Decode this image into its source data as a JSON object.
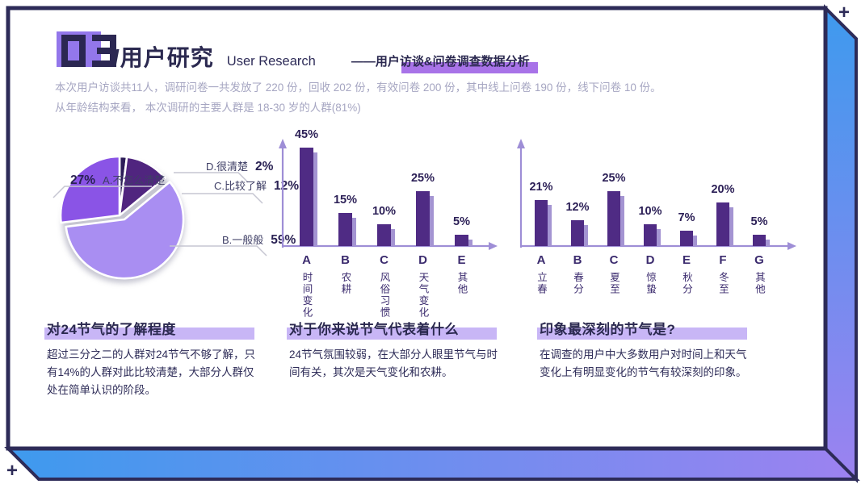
{
  "slide": {
    "number": "03",
    "title": "/用户研究",
    "title_en": "User Research",
    "subtitle": "——用户访谈&问卷调查数据分析",
    "intro": "本次用户访谈共11人，调研问卷一共发放了 220 份，回收 202 份，有效问卷 200 份，其中线上问卷 190 份，线下问卷 10 份。\n从年龄结构来看， 本次调研的主要人群是 18-30 岁的人群(81%)",
    "corner_plus": "+"
  },
  "chart_data": [
    {
      "type": "pie",
      "title": "对24节气的了解程度",
      "unit": "%",
      "slices": [
        {
          "label": "D.很清楚",
          "value": 2,
          "color": "#2c1c58"
        },
        {
          "label": "C.比较了解",
          "value": 12,
          "color": "#50257f"
        },
        {
          "label": "B.一般般",
          "value": 59,
          "color": "#a98ef2",
          "exploded": true
        },
        {
          "label": "A.不怎么清楚",
          "value": 27,
          "color": "#8a54e6"
        }
      ]
    },
    {
      "type": "bar",
      "title": "对于你来说节气代表着什么",
      "unit": "%",
      "categories": [
        "A",
        "B",
        "C",
        "D",
        "E"
      ],
      "category_names": [
        "时间变化",
        "农耕",
        "风俗习惯",
        "天气变化",
        "其他"
      ],
      "values": [
        45,
        15,
        10,
        25,
        5
      ],
      "ylim": [
        0,
        50
      ]
    },
    {
      "type": "bar",
      "title": "印象最深刻的节气是?",
      "unit": "%",
      "categories": [
        "A",
        "B",
        "C",
        "D",
        "E",
        "F",
        "G"
      ],
      "category_names": [
        "立春",
        "春分",
        "夏至",
        "惊蛰",
        "秋分",
        "冬至",
        "其他"
      ],
      "values": [
        21,
        12,
        25,
        10,
        7,
        20,
        5
      ],
      "ylim": [
        0,
        30
      ]
    }
  ],
  "sections": [
    {
      "title": "对24节气的了解程度",
      "body": "超过三分之二的人群对24节气不够了解，只\n有14%的人群对此比较清楚，大部分人群仅\n处在简单认识的阶段。"
    },
    {
      "title": "对于你来说节气代表着什么",
      "body": "24节气氛围较弱，在大部分人眼里节气与时\n间有关，其次是天气变化和农耕。"
    },
    {
      "title": "印象最深刻的节气是?",
      "body": "在调查的用户中大多数用户对时间上和天气\n变化上有明显变化的节气有较深刻的印象。"
    }
  ],
  "colors": {
    "frame_navy": "#2d2b58",
    "band_blue": "#3e9aee",
    "band_purple": "#9c82f0",
    "logo_purple": "#9377eb",
    "bar_main": "#4f2b84",
    "bar_shadow": "#a494d2",
    "axis": "#9e8ed6",
    "leader_line": "#c6c6d2",
    "section_highlight": "#c8b6f6",
    "subtitle_highlight": "#a873e8"
  }
}
